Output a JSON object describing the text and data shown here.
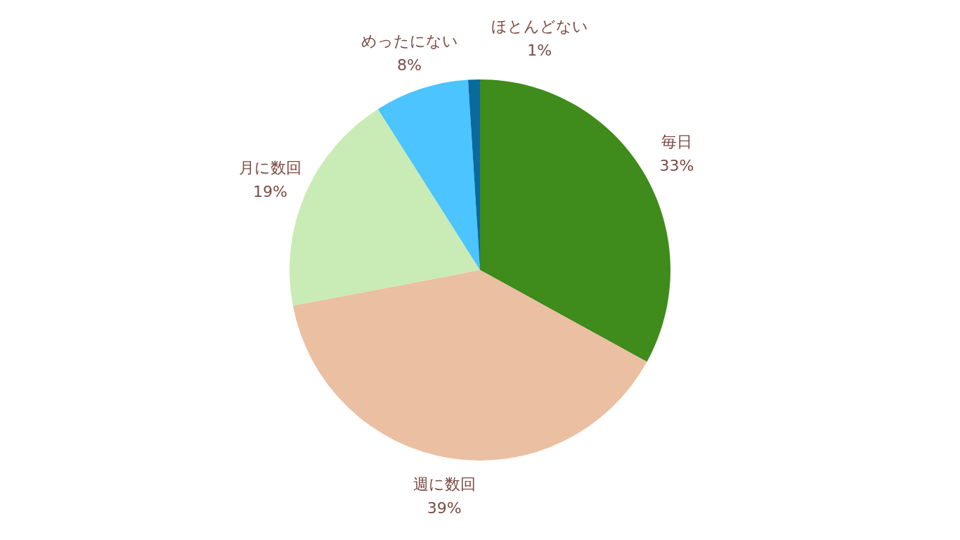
{
  "chart_data": {
    "type": "pie",
    "categories": [
      "毎日",
      "週に数回",
      "月に数回",
      "めったにない",
      "ほとんどない"
    ],
    "values": [
      33,
      39,
      19,
      8,
      1
    ],
    "colors": [
      "#3f8b1b",
      "#ebbfa2",
      "#c9ebb5",
      "#4bc4ff",
      "#0a6a9c"
    ],
    "value_labels": [
      "33%",
      "39%",
      "19%",
      "8%",
      "1%"
    ]
  }
}
